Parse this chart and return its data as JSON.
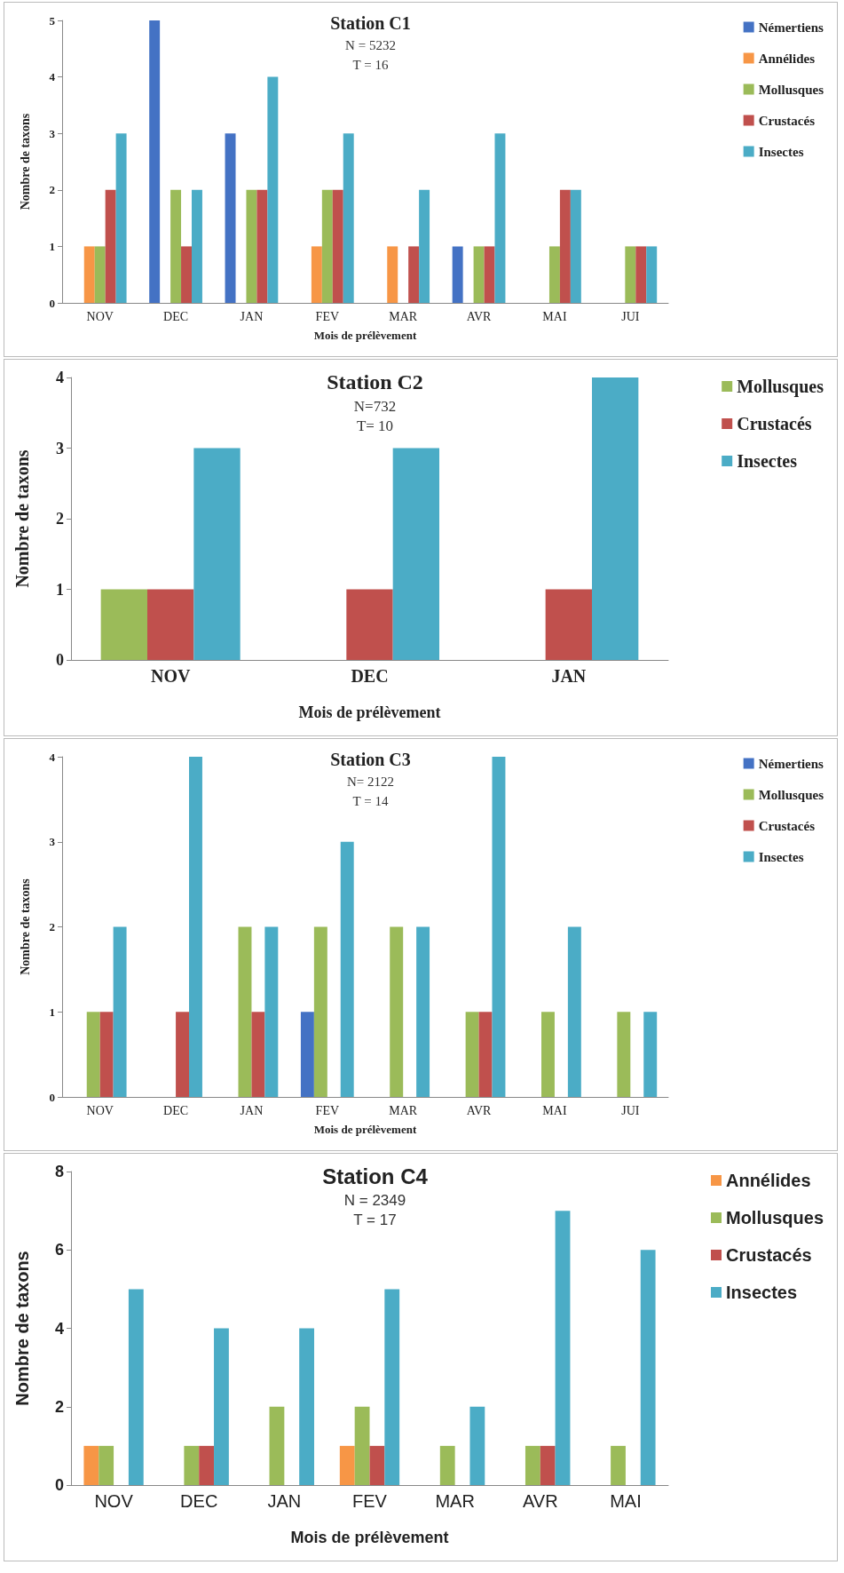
{
  "chart_data": [
    {
      "type": "bar",
      "title": "Station C1",
      "subtitle": "N = 5232\nT = 16",
      "xlabel": "Mois de prélèvement",
      "ylabel": "Nombre de taxons",
      "categories": [
        "NOV",
        "DEC",
        "JAN",
        "FEV",
        "MAR",
        "AVR",
        "MAI",
        "JUI"
      ],
      "ylim": [
        0,
        5
      ],
      "yticks": [
        0,
        1,
        2,
        3,
        4,
        5
      ],
      "legend": "right",
      "series": [
        {
          "name": "Némertiens",
          "color": "#4472c4",
          "values": [
            0,
            5,
            3,
            0,
            0,
            1,
            0,
            0
          ]
        },
        {
          "name": "Annélides",
          "color": "#f79646",
          "values": [
            1,
            0,
            0,
            1,
            1,
            0,
            0,
            0
          ]
        },
        {
          "name": "Mollusques",
          "color": "#9bbb59",
          "values": [
            1,
            2,
            2,
            2,
            0,
            1,
            1,
            1
          ]
        },
        {
          "name": "Crustacés",
          "color": "#c0504d",
          "values": [
            2,
            1,
            2,
            2,
            1,
            1,
            2,
            1
          ]
        },
        {
          "name": "Insectes",
          "color": "#4bacc6",
          "values": [
            3,
            2,
            4,
            3,
            2,
            3,
            2,
            1
          ]
        }
      ]
    },
    {
      "type": "bar",
      "title": "Station C2",
      "subtitle": "N=732\nT= 10",
      "xlabel": "Mois de prélèvement",
      "ylabel": "Nombre de taxons",
      "categories": [
        "NOV",
        "DEC",
        "JAN"
      ],
      "ylim": [
        0,
        4
      ],
      "yticks": [
        0,
        1,
        2,
        3,
        4
      ],
      "legend": "right",
      "series": [
        {
          "name": "Mollusques",
          "color": "#9bbb59",
          "values": [
            1,
            0,
            0
          ]
        },
        {
          "name": "Crustacés",
          "color": "#c0504d",
          "values": [
            1,
            1,
            1
          ]
        },
        {
          "name": "Insectes",
          "color": "#4bacc6",
          "values": [
            3,
            3,
            4
          ]
        }
      ]
    },
    {
      "type": "bar",
      "title": "Station C3",
      "subtitle": "N= 2122\nT = 14",
      "xlabel": "Mois de prélèvement",
      "ylabel": "Nombre de taxons",
      "categories": [
        "NOV",
        "DEC",
        "JAN",
        "FEV",
        "MAR",
        "AVR",
        "MAI",
        "JUI"
      ],
      "ylim": [
        0,
        4
      ],
      "yticks": [
        0,
        1,
        2,
        3,
        4
      ],
      "legend": "right",
      "series": [
        {
          "name": "Némertiens",
          "color": "#4472c4",
          "values": [
            0,
            0,
            0,
            1,
            0,
            0,
            0,
            0
          ]
        },
        {
          "name": "Mollusques",
          "color": "#9bbb59",
          "values": [
            1,
            0,
            2,
            2,
            2,
            1,
            1,
            1
          ]
        },
        {
          "name": "Crustacés",
          "color": "#c0504d",
          "values": [
            1,
            1,
            1,
            0,
            0,
            1,
            0,
            0
          ]
        },
        {
          "name": "Insectes",
          "color": "#4bacc6",
          "values": [
            2,
            4,
            2,
            3,
            2,
            4,
            2,
            1
          ]
        }
      ]
    },
    {
      "type": "bar",
      "title": "Station C4",
      "subtitle": "N = 2349\nT = 17",
      "xlabel": "Mois de prélèvement",
      "ylabel": "Nombre de taxons",
      "categories": [
        "NOV",
        "DEC",
        "JAN",
        "FEV",
        "MAR",
        "AVR",
        "MAI"
      ],
      "ylim": [
        0,
        8
      ],
      "yticks": [
        0,
        2,
        4,
        6,
        8
      ],
      "legend": "right",
      "series": [
        {
          "name": "Annélides",
          "color": "#f79646",
          "values": [
            1,
            0,
            0,
            1,
            0,
            0,
            0
          ]
        },
        {
          "name": "Mollusques",
          "color": "#9bbb59",
          "values": [
            1,
            1,
            2,
            2,
            1,
            1,
            1
          ]
        },
        {
          "name": "Crustacés",
          "color": "#c0504d",
          "values": [
            0,
            1,
            0,
            1,
            0,
            1,
            0
          ]
        },
        {
          "name": "Insectes",
          "color": "#4bacc6",
          "values": [
            5,
            4,
            4,
            5,
            2,
            7,
            6
          ]
        }
      ]
    }
  ]
}
